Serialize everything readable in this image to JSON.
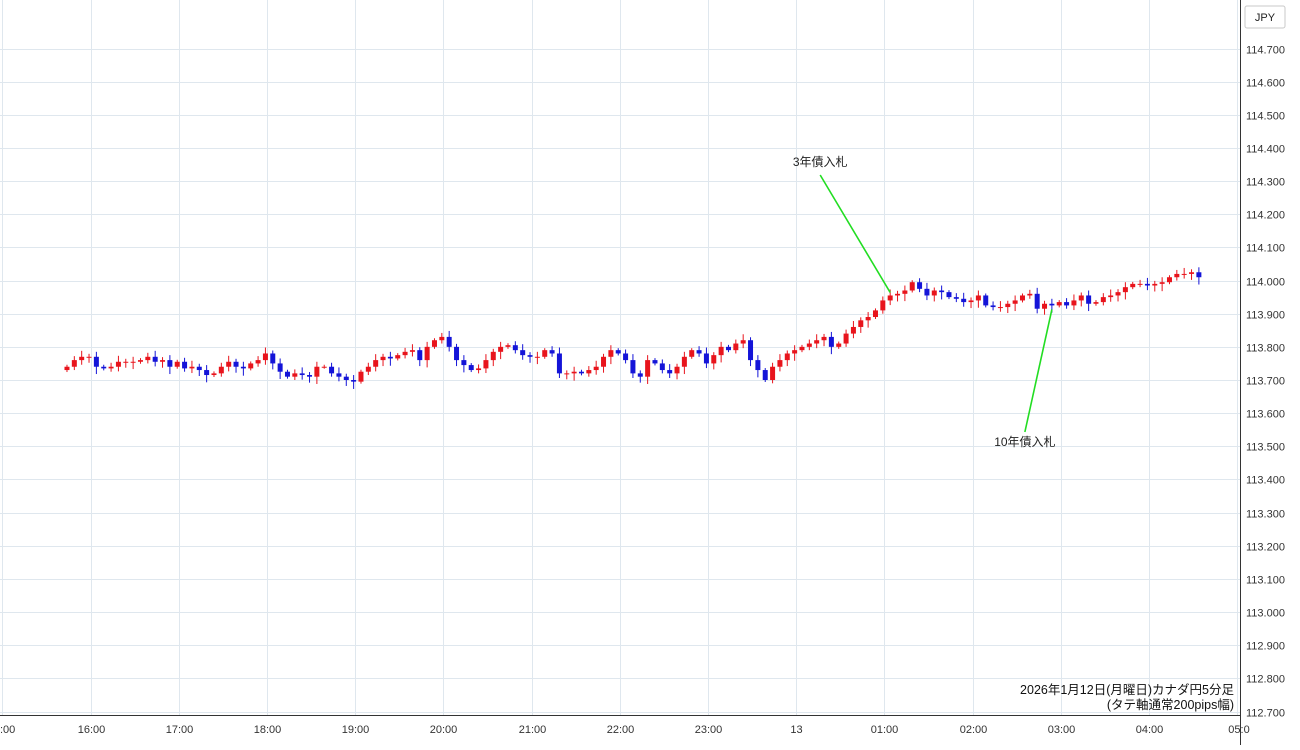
{
  "currency_label": "JPY",
  "note_lines": [
    "2026年1月12日(月曜日)カナダ円5分足",
    "(タテ軸通常200pips幅)"
  ],
  "colors": {
    "up": "#e8141c",
    "down": "#1414d8",
    "annotation_line": "#22dd22",
    "grid": "#dfe7ee"
  },
  "chart_data": {
    "type": "candlestick",
    "title": "",
    "ylim": [
      112.7,
      114.75
    ],
    "y_ticks": [
      "114.700",
      "114.600",
      "114.500",
      "114.400",
      "114.300",
      "114.200",
      "114.100",
      "114.000",
      "113.900",
      "113.800",
      "113.700",
      "113.600",
      "113.500",
      "113.400",
      "113.300",
      "113.200",
      "113.100",
      "113.000",
      "112.900",
      "112.800",
      "112.700"
    ],
    "x_ticks": [
      ":00",
      "16:00",
      "17:00",
      "18:00",
      "19:00",
      "20:00",
      "21:00",
      "22:00",
      "23:00",
      "13",
      "01:00",
      "02:00",
      "03:00",
      "04:00",
      "05:0"
    ],
    "candle_interval_minutes": 5,
    "first_candle_offset_from_16:00": -16,
    "closes": [
      113.74,
      113.76,
      113.77,
      113.77,
      113.74,
      113.735,
      113.74,
      113.755,
      113.755,
      113.755,
      113.76,
      113.77,
      113.755,
      113.76,
      113.74,
      113.755,
      113.735,
      113.74,
      113.73,
      113.715,
      113.72,
      113.74,
      113.755,
      113.74,
      113.735,
      113.75,
      113.76,
      113.78,
      113.75,
      113.725,
      113.71,
      113.72,
      113.715,
      113.71,
      113.74,
      113.74,
      113.72,
      113.71,
      113.7,
      113.695,
      113.725,
      113.74,
      113.76,
      113.77,
      113.765,
      113.775,
      113.785,
      113.79,
      113.76,
      113.8,
      113.82,
      113.83,
      113.8,
      113.76,
      113.745,
      113.73,
      113.735,
      113.76,
      113.785,
      113.8,
      113.805,
      113.79,
      113.775,
      113.77,
      113.77,
      113.79,
      113.78,
      113.72,
      113.72,
      113.725,
      113.72,
      113.73,
      113.74,
      113.77,
      113.79,
      113.78,
      113.76,
      113.72,
      113.71,
      113.76,
      113.75,
      113.73,
      113.72,
      113.74,
      113.77,
      113.79,
      113.78,
      113.75,
      113.775,
      113.8,
      113.79,
      113.81,
      113.82,
      113.76,
      113.73,
      113.7,
      113.74,
      113.76,
      113.78,
      113.79,
      113.8,
      113.81,
      113.82,
      113.83,
      113.8,
      113.81,
      113.84,
      113.86,
      113.88,
      113.89,
      113.91,
      113.94,
      113.955,
      113.96,
      113.97,
      113.995,
      113.975,
      113.955,
      113.97,
      113.965,
      113.95,
      113.945,
      113.935,
      113.94,
      113.955,
      113.925,
      113.92,
      113.92,
      113.93,
      113.94,
      113.955,
      113.96,
      113.915,
      113.93,
      113.925,
      113.935,
      113.925,
      113.94,
      113.955,
      113.93,
      113.935,
      113.95,
      113.955,
      113.965,
      113.98,
      113.99,
      113.99,
      113.985,
      113.99,
      113.995,
      114.01,
      114.02,
      114.02,
      114.025,
      114.01
    ],
    "annotations": [
      {
        "text": "3年債入札",
        "candle_index": 112
      },
      {
        "text": "10年債入札",
        "candle_index": 134
      }
    ]
  }
}
